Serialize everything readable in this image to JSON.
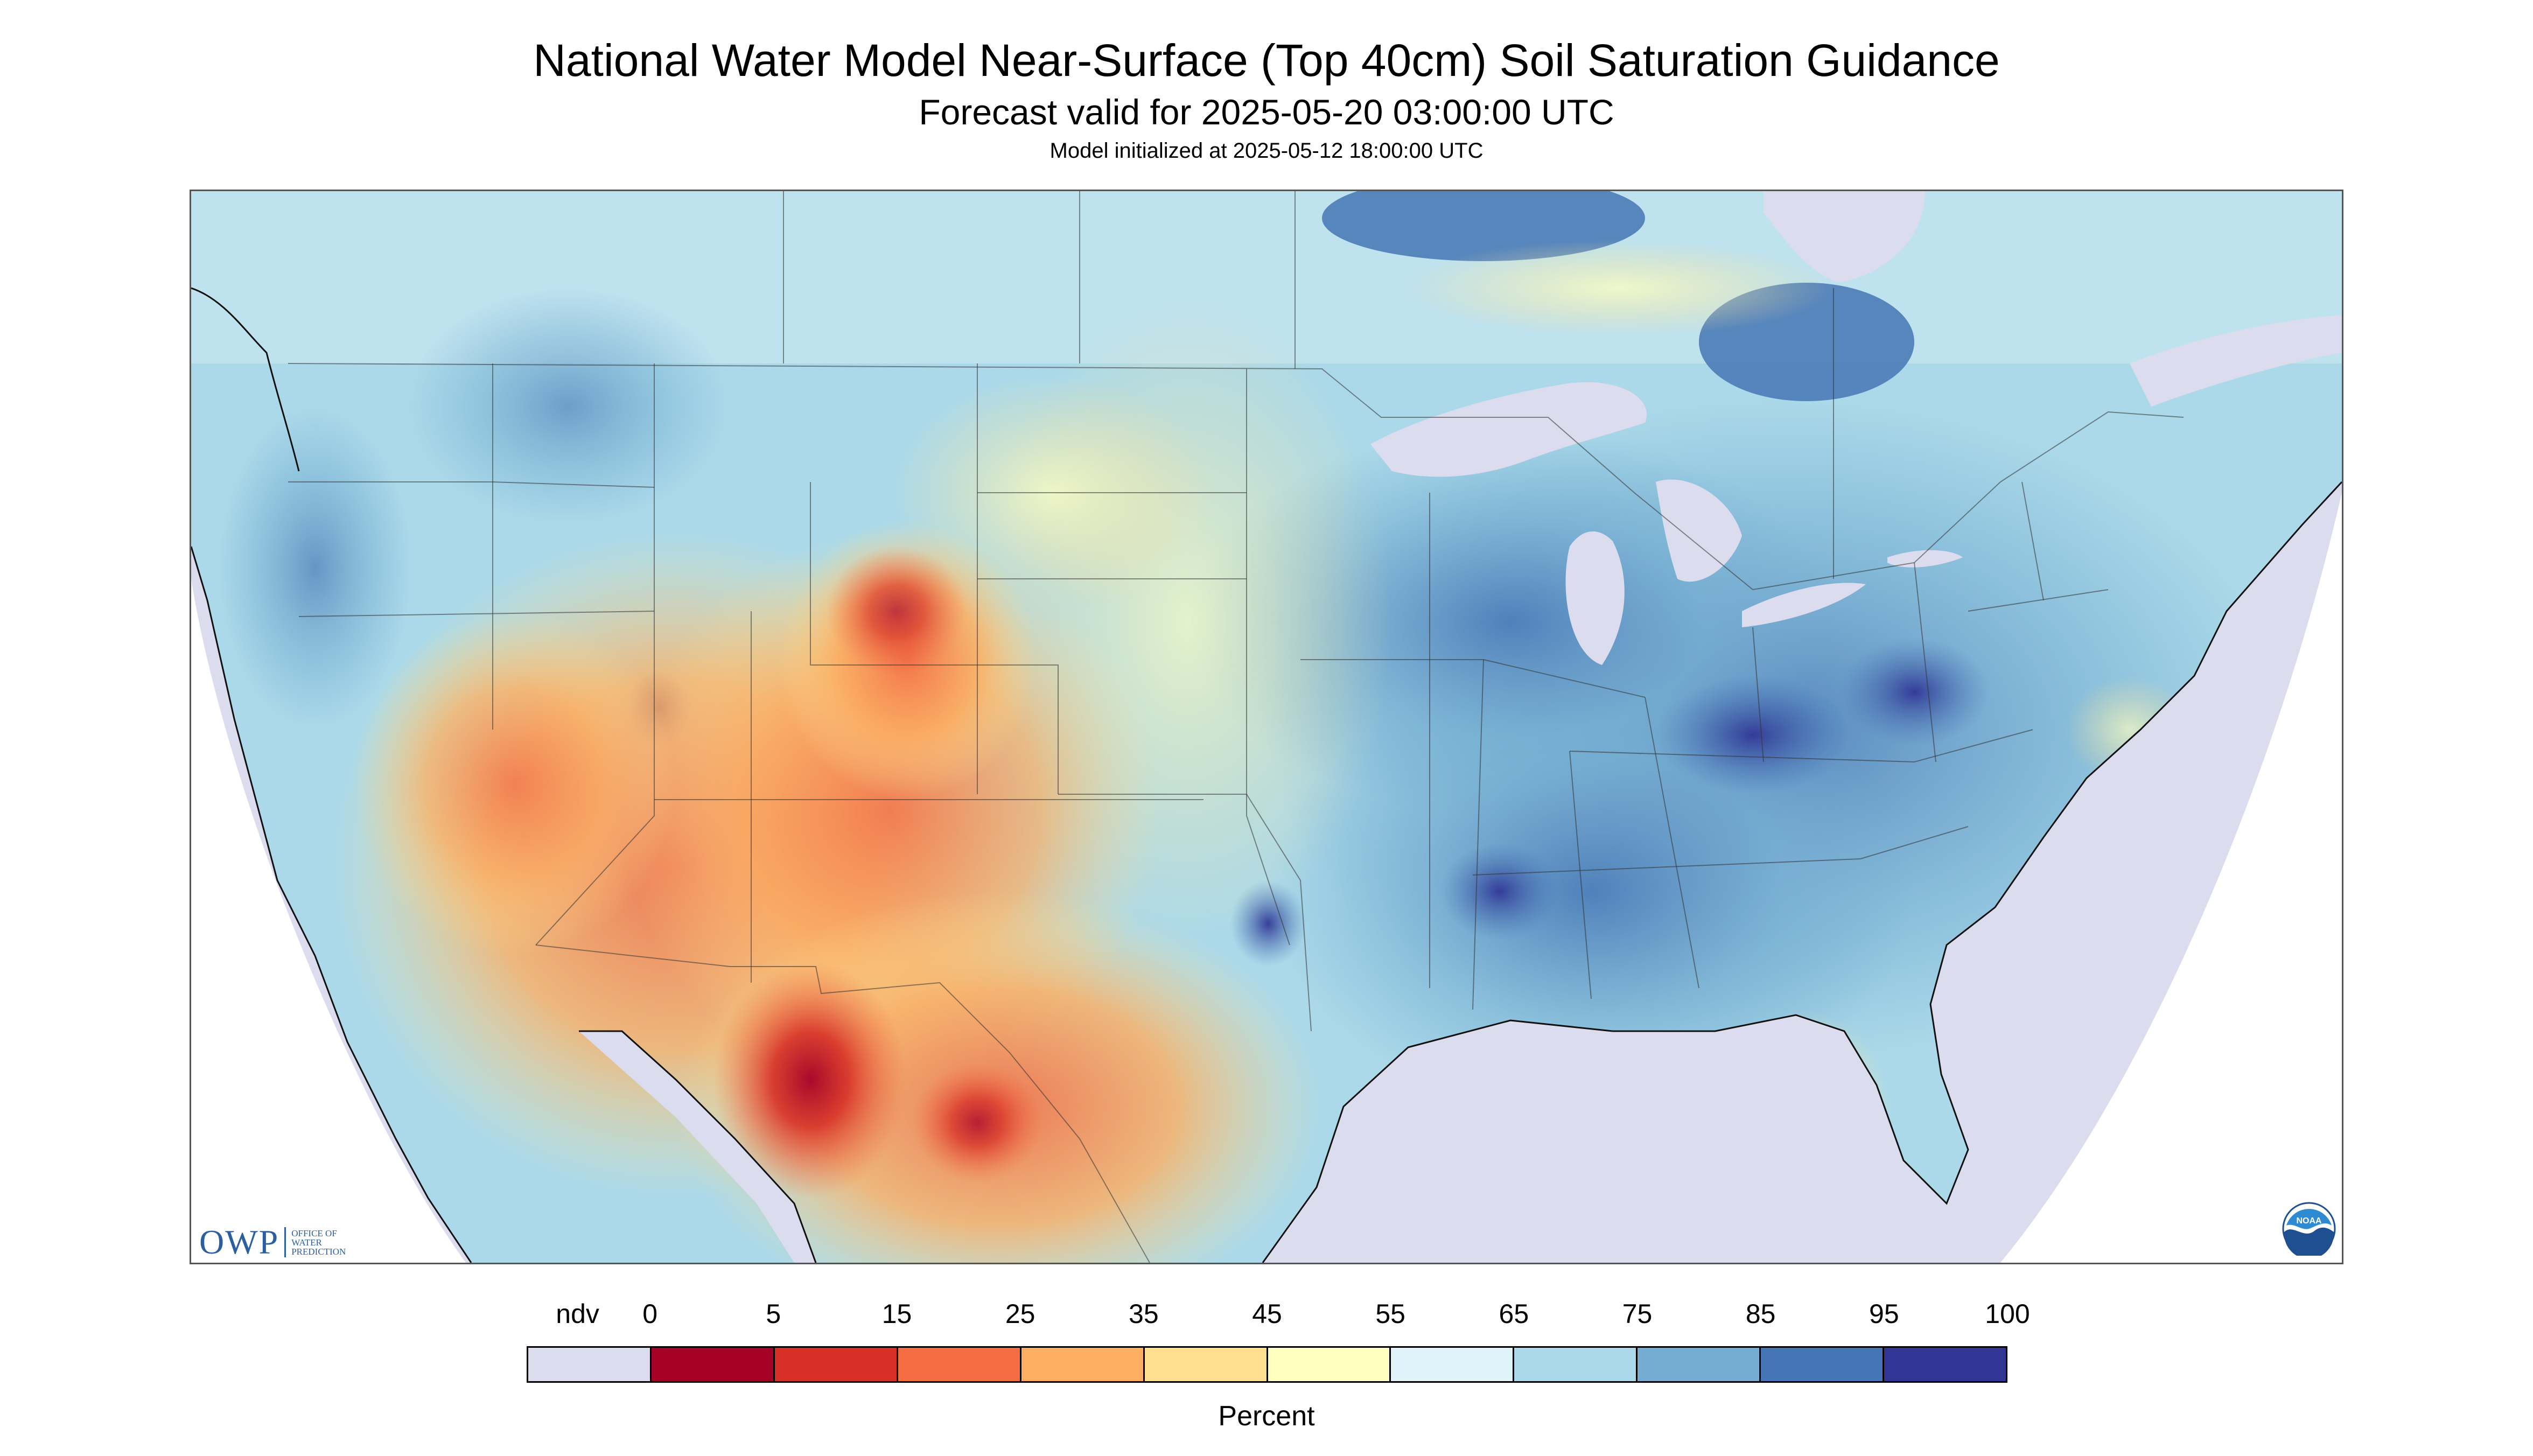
{
  "header": {
    "title": "National Water Model Near-Surface (Top 40cm) Soil Saturation Guidance",
    "subtitle": "Forecast valid for 2025-05-20 03:00:00 UTC",
    "init_line": "Model initialized at 2025-05-12 18:00:00 UTC"
  },
  "map": {
    "ocean_color": "#dcdcef",
    "outside_projection_color": "#ffffff"
  },
  "logos": {
    "owp_mark": "OWP",
    "owp_text": [
      "OFFICE OF",
      "WATER",
      "PREDICTION"
    ],
    "noaa_text": "NOAA"
  },
  "legend": {
    "tick_labels": [
      "ndv",
      "0",
      "5",
      "15",
      "25",
      "35",
      "45",
      "55",
      "65",
      "75",
      "85",
      "95",
      "100"
    ],
    "unit": "Percent",
    "swatches": [
      {
        "range": "ndv",
        "color": "#dcdcef"
      },
      {
        "range": "0-5",
        "color": "#a50026"
      },
      {
        "range": "5-15",
        "color": "#d73027"
      },
      {
        "range": "15-25",
        "color": "#f46d43"
      },
      {
        "range": "25-35",
        "color": "#fdae61"
      },
      {
        "range": "35-45",
        "color": "#fee090"
      },
      {
        "range": "45-55",
        "color": "#ffffbf"
      },
      {
        "range": "55-65",
        "color": "#e0f3f8"
      },
      {
        "range": "65-75",
        "color": "#abd9e9"
      },
      {
        "range": "75-85",
        "color": "#74add1"
      },
      {
        "range": "85-95",
        "color": "#4575b4"
      },
      {
        "range": "95-100",
        "color": "#313695"
      }
    ]
  }
}
